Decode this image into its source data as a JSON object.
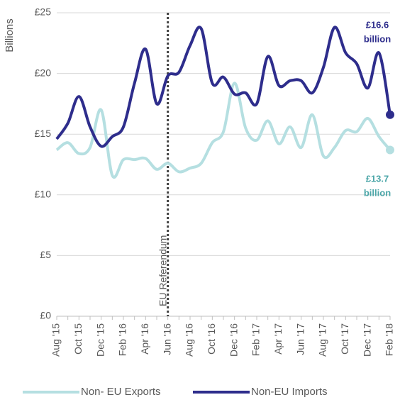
{
  "chart_data": {
    "type": "line",
    "y_label": "Billions",
    "categories": [
      "Aug '15",
      null,
      "Oct '15",
      null,
      "Dec '15",
      null,
      "Feb '16",
      null,
      "Apr '16",
      null,
      "Jun '16",
      null,
      "Aug '16",
      null,
      "Oct '16",
      null,
      "Dec '16",
      null,
      "Feb '17",
      null,
      "Apr '17",
      null,
      "Jun '17",
      null,
      "Aug '17",
      null,
      "Oct '17",
      null,
      "Dec '17",
      null,
      "Feb '18"
    ],
    "series": [
      {
        "name": "Non- EU Exports",
        "color": "#b5dfe1",
        "values": [
          13.7,
          14.3,
          13.4,
          13.9,
          17.0,
          11.6,
          12.9,
          12.9,
          13.0,
          12.1,
          12.6,
          11.9,
          12.2,
          12.6,
          14.3,
          15.2,
          19.2,
          15.5,
          14.5,
          16.1,
          14.2,
          15.6,
          13.9,
          16.6,
          13.2,
          13.9,
          15.3,
          15.2,
          16.3,
          14.8,
          13.7
        ]
      },
      {
        "name": "Non-EU Imports",
        "color": "#2e2d8c",
        "values": [
          14.6,
          15.9,
          18.1,
          15.6,
          14.0,
          14.8,
          15.6,
          19.2,
          22.0,
          17.5,
          19.8,
          20.1,
          22.3,
          23.7,
          19.2,
          19.7,
          18.3,
          18.4,
          17.5,
          21.4,
          19.0,
          19.4,
          19.4,
          18.4,
          20.5,
          23.8,
          21.7,
          20.8,
          18.8,
          21.7,
          16.6
        ]
      }
    ],
    "annotations": [
      {
        "lines": [
          "£16.6",
          "billion"
        ],
        "color": "#2e2d8c"
      },
      {
        "lines": [
          "£13.7",
          "billion"
        ],
        "color": "#4ba6a8"
      }
    ],
    "event": {
      "label": "EU Referendum",
      "at": "Jun '16"
    },
    "ylim": [
      0,
      25
    ],
    "yticks": [
      {
        "value": 0,
        "label": "£0"
      },
      {
        "value": 5,
        "label": "£5"
      },
      {
        "value": 10,
        "label": "£10"
      },
      {
        "value": 15,
        "label": "£15"
      },
      {
        "value": 20,
        "label": "£20"
      },
      {
        "value": 25,
        "label": "£25"
      }
    ],
    "grid": true
  }
}
